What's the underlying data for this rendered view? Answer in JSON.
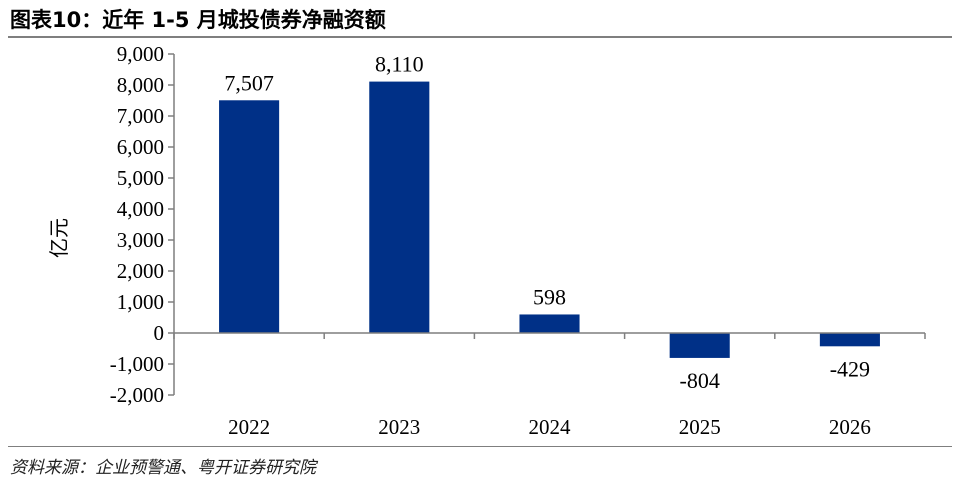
{
  "title": "图表10：近年 1-5 月城投债券净融资额",
  "source": "资料来源：企业预警通、粤开证券研究院",
  "colors": {
    "bar": "#003087",
    "axis": "#7f7f7f"
  },
  "chart_data": {
    "type": "bar",
    "categories": [
      "2022",
      "2023",
      "2024",
      "2025",
      "2026"
    ],
    "values": [
      7507,
      8110,
      598,
      -804,
      -429
    ],
    "value_labels": [
      "7,507",
      "8,110",
      "598",
      "-804",
      "-429"
    ],
    "ylabel": "亿元",
    "ylim": [
      -2000,
      9000
    ],
    "yticks": [
      -2000,
      -1000,
      0,
      1000,
      2000,
      3000,
      4000,
      5000,
      6000,
      7000,
      8000,
      9000
    ],
    "ytick_labels": [
      "-2,000",
      "-1,000",
      "0",
      "1,000",
      "2,000",
      "3,000",
      "4,000",
      "5,000",
      "6,000",
      "7,000",
      "8,000",
      "9,000"
    ],
    "grid": false,
    "legend": "none"
  }
}
